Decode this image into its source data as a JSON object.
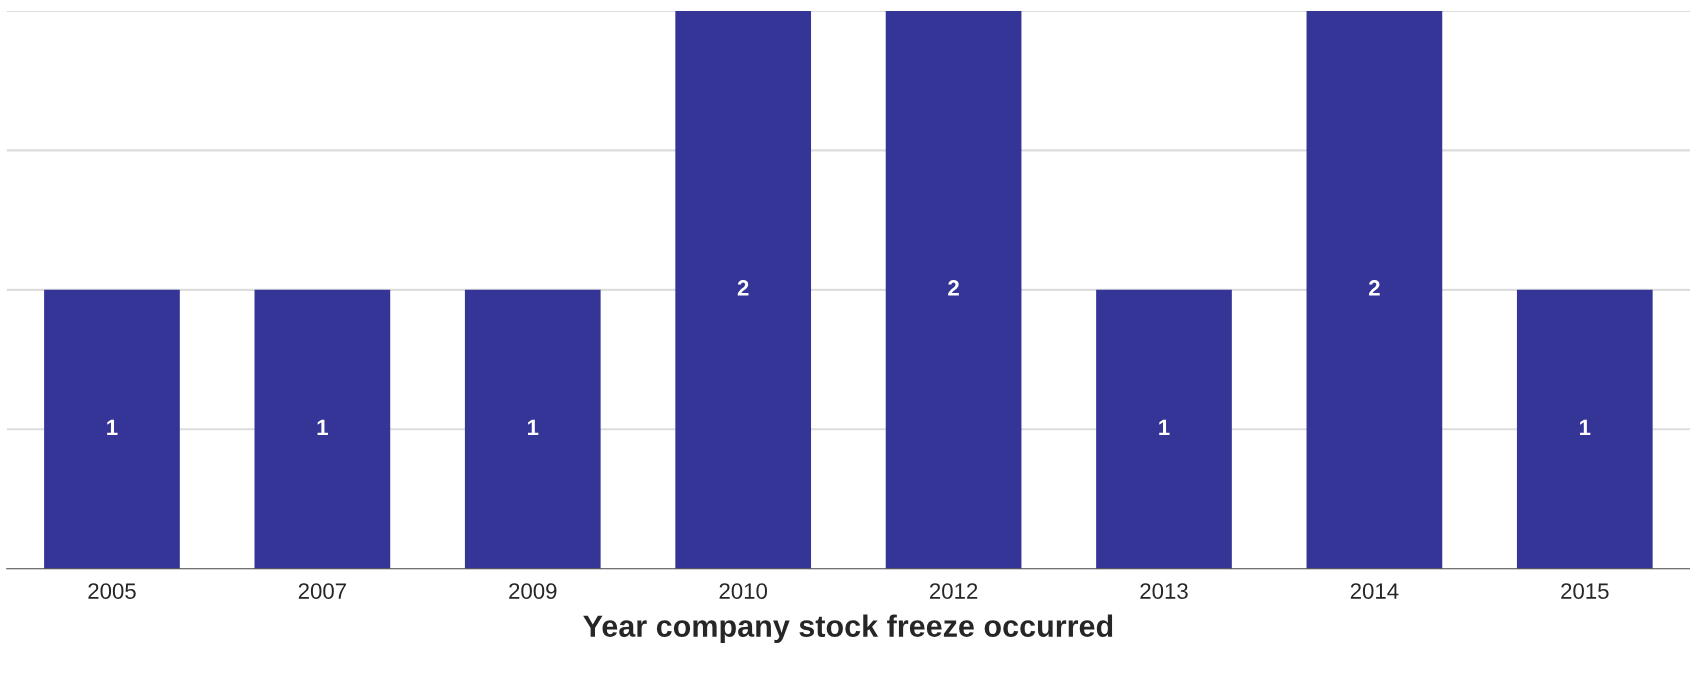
{
  "chart_data": {
    "type": "bar",
    "xlabel": "Year company stock freeze occurred",
    "categories": [
      "2005",
      "2007",
      "2009",
      "2010",
      "2012",
      "2013",
      "2014",
      "2015"
    ],
    "values": [
      1,
      1,
      1,
      2,
      2,
      1,
      2,
      1
    ],
    "color": "#353598",
    "ylim": [
      0,
      2
    ],
    "yticks": [
      {
        "value": 0.5,
        "label": null
      },
      {
        "value": 1,
        "label": null
      },
      {
        "value": 1.5,
        "label": null
      },
      {
        "value": 2,
        "label": null
      }
    ],
    "grid": "y",
    "tick_labels": "x",
    "data_labels": true
  }
}
